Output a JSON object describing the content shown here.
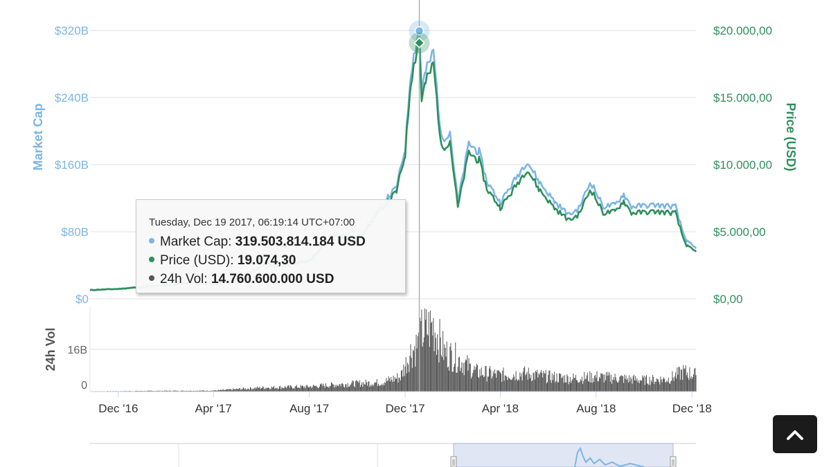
{
  "chart_data": {
    "type": "line",
    "axes": {
      "market_cap": {
        "title": "Market Cap",
        "ticks": [
          "$0",
          "$80B",
          "$160B",
          "$240B",
          "$320B"
        ],
        "range": [
          0,
          320
        ]
      },
      "price": {
        "title": "Price (USD)",
        "ticks": [
          "$0,00",
          "$5.000,00",
          "$10.000,00",
          "$15.000,00",
          "$20.000,00"
        ],
        "range": [
          0,
          20000
        ]
      },
      "volume": {
        "title": "24h Vol",
        "ticks": [
          "0",
          "16B"
        ],
        "range": [
          0,
          24
        ]
      },
      "x": {
        "ticks": [
          "Dec '16",
          "Apr '17",
          "Aug '17",
          "Dec '17",
          "Apr '18",
          "Aug '18",
          "Dec '18"
        ],
        "range": [
          "2016-10-26",
          "2018-12-06"
        ]
      }
    },
    "series": [
      {
        "name": "Market Cap",
        "color": "#7cb5e3",
        "points": [
          [
            "2016-10-26",
            10.8
          ],
          [
            "2016-12-01",
            12.0
          ],
          [
            "2017-01-05",
            15.0
          ],
          [
            "2017-02-01",
            16.2
          ],
          [
            "2017-03-01",
            19.5
          ],
          [
            "2017-04-01",
            17.5
          ],
          [
            "2017-05-01",
            23.0
          ],
          [
            "2017-06-01",
            40.0
          ],
          [
            "2017-07-01",
            41.0
          ],
          [
            "2017-08-01",
            46.0
          ],
          [
            "2017-09-01",
            78.0
          ],
          [
            "2017-10-01",
            72.0
          ],
          [
            "2017-11-01",
            112.0
          ],
          [
            "2017-11-20",
            133.0
          ],
          [
            "2017-12-01",
            180.0
          ],
          [
            "2017-12-08",
            270.0
          ],
          [
            "2017-12-12",
            290.0
          ],
          [
            "2017-12-17",
            315.0
          ],
          [
            "2017-12-19",
            319.5
          ],
          [
            "2017-12-22",
            250.0
          ],
          [
            "2017-12-27",
            270.0
          ],
          [
            "2018-01-06",
            295.0
          ],
          [
            "2018-01-16",
            190.0
          ],
          [
            "2018-01-27",
            200.0
          ],
          [
            "2018-02-06",
            115.0
          ],
          [
            "2018-02-20",
            185.0
          ],
          [
            "2018-03-05",
            175.0
          ],
          [
            "2018-03-15",
            140.0
          ],
          [
            "2018-04-01",
            115.0
          ],
          [
            "2018-04-15",
            135.0
          ],
          [
            "2018-05-05",
            165.0
          ],
          [
            "2018-05-20",
            140.0
          ],
          [
            "2018-06-10",
            115.0
          ],
          [
            "2018-06-28",
            100.0
          ],
          [
            "2018-07-10",
            108.0
          ],
          [
            "2018-07-25",
            140.0
          ],
          [
            "2018-08-10",
            110.0
          ],
          [
            "2018-08-25",
            112.0
          ],
          [
            "2018-09-05",
            125.0
          ],
          [
            "2018-09-15",
            110.0
          ],
          [
            "2018-10-15",
            112.0
          ],
          [
            "2018-11-10",
            110.0
          ],
          [
            "2018-11-14",
            96.0
          ],
          [
            "2018-11-20",
            78.0
          ],
          [
            "2018-11-25",
            68.0
          ],
          [
            "2018-12-06",
            60.0
          ]
        ]
      },
      {
        "name": "Price (USD)",
        "color": "#2e8f5b",
        "points": [
          [
            "2016-10-26",
            650
          ],
          [
            "2016-12-01",
            740
          ],
          [
            "2017-01-05",
            900
          ],
          [
            "2017-02-01",
            985
          ],
          [
            "2017-03-01",
            1200
          ],
          [
            "2017-04-01",
            1080
          ],
          [
            "2017-05-01",
            1400
          ],
          [
            "2017-06-01",
            2450
          ],
          [
            "2017-07-01",
            2480
          ],
          [
            "2017-08-01",
            2800
          ],
          [
            "2017-09-01",
            4700
          ],
          [
            "2017-10-01",
            4330
          ],
          [
            "2017-11-01",
            6700
          ],
          [
            "2017-11-20",
            8000
          ],
          [
            "2017-12-01",
            10800
          ],
          [
            "2017-12-08",
            16200
          ],
          [
            "2017-12-12",
            17400
          ],
          [
            "2017-12-17",
            18900
          ],
          [
            "2017-12-19",
            19074.3
          ],
          [
            "2017-12-22",
            14900
          ],
          [
            "2017-12-27",
            16100
          ],
          [
            "2018-01-06",
            17500
          ],
          [
            "2018-01-16",
            11200
          ],
          [
            "2018-01-27",
            11800
          ],
          [
            "2018-02-06",
            6800
          ],
          [
            "2018-02-20",
            10900
          ],
          [
            "2018-03-05",
            10300
          ],
          [
            "2018-03-15",
            8200
          ],
          [
            "2018-04-01",
            6800
          ],
          [
            "2018-04-15",
            7900
          ],
          [
            "2018-05-05",
            9700
          ],
          [
            "2018-05-20",
            8200
          ],
          [
            "2018-06-10",
            6700
          ],
          [
            "2018-06-28",
            5850
          ],
          [
            "2018-07-10",
            6300
          ],
          [
            "2018-07-25",
            8200
          ],
          [
            "2018-08-10",
            6400
          ],
          [
            "2018-08-25",
            6500
          ],
          [
            "2018-09-05",
            7300
          ],
          [
            "2018-09-15",
            6400
          ],
          [
            "2018-10-15",
            6500
          ],
          [
            "2018-11-10",
            6400
          ],
          [
            "2018-11-14",
            5600
          ],
          [
            "2018-11-20",
            4500
          ],
          [
            "2018-11-25",
            3900
          ],
          [
            "2018-12-06",
            3500
          ]
        ]
      },
      {
        "name": "24h Vol",
        "color": "#555555",
        "points": [
          [
            "2016-10-26",
            0.1
          ],
          [
            "2017-01-01",
            0.2
          ],
          [
            "2017-04-01",
            0.3
          ],
          [
            "2017-06-01",
            1.2
          ],
          [
            "2017-08-01",
            1.5
          ],
          [
            "2017-09-15",
            2.3
          ],
          [
            "2017-11-01",
            2.8
          ],
          [
            "2017-11-25",
            4.5
          ],
          [
            "2017-12-08",
            12.0
          ],
          [
            "2017-12-19",
            14.76
          ],
          [
            "2017-12-22",
            18.0
          ],
          [
            "2018-01-06",
            20.0
          ],
          [
            "2018-01-20",
            12.0
          ],
          [
            "2018-02-06",
            10.0
          ],
          [
            "2018-03-01",
            6.0
          ],
          [
            "2018-04-01",
            5.0
          ],
          [
            "2018-05-01",
            5.5
          ],
          [
            "2018-06-01",
            4.5
          ],
          [
            "2018-07-01",
            4.0
          ],
          [
            "2018-08-01",
            4.5
          ],
          [
            "2018-09-01",
            4.0
          ],
          [
            "2018-10-01",
            3.5
          ],
          [
            "2018-11-01",
            3.8
          ],
          [
            "2018-11-20",
            6.0
          ],
          [
            "2018-12-06",
            5.0
          ]
        ]
      }
    ],
    "tooltip": {
      "date": "Tuesday, Dec 19 2017, 06:19:14 UTC+07:00",
      "rows": [
        {
          "label": "Market Cap:",
          "value": "319.503.814.184 USD",
          "color": "#7cb5e3"
        },
        {
          "label": "Price (USD):",
          "value": "19.074,30",
          "color": "#2e8f5b"
        },
        {
          "label": "24h Vol:",
          "value": "14.760.600.000 USD",
          "color": "#555555"
        }
      ]
    },
    "hover_date": "2017-12-19",
    "navigator": {
      "selected_range": [
        "2017-04-01",
        "2018-12-06"
      ]
    },
    "grid": true
  },
  "ui": {
    "scroll_top_icon": "chevron-up-icon"
  }
}
